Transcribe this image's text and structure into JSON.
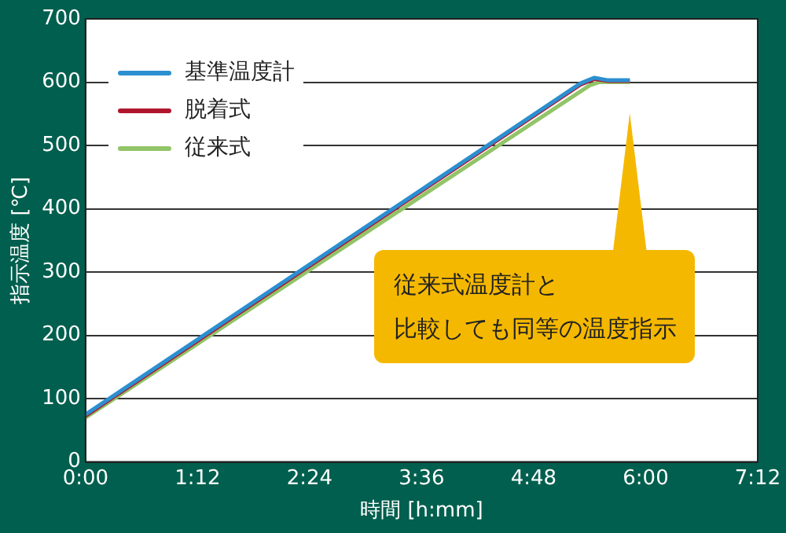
{
  "chart_data": {
    "type": "line",
    "xlabel": "時間 [h:mm]",
    "ylabel": "指示温度 [℃]",
    "series": [
      {
        "name": "基準温度計",
        "color": "#2b8fd0",
        "x": [
          0,
          5.3,
          5.45,
          5.6,
          5.83
        ],
        "values": [
          75,
          598,
          607,
          603,
          603
        ]
      },
      {
        "name": "脱着式",
        "color": "#b0172e",
        "x": [
          0,
          5.3,
          5.45,
          5.6,
          5.83
        ],
        "values": [
          73,
          596,
          605,
          602,
          602
        ]
      },
      {
        "name": "従来式",
        "color": "#92c468",
        "x": [
          0,
          5.4,
          5.5,
          5.83
        ],
        "values": [
          70,
          595,
          600,
          600
        ]
      }
    ],
    "xlim": [
      0,
      7.2
    ],
    "xticks": [
      {
        "value": 0,
        "label": "0:00"
      },
      {
        "value": 1.2,
        "label": "1:12"
      },
      {
        "value": 2.4,
        "label": "2:24"
      },
      {
        "value": 3.6,
        "label": "3:36"
      },
      {
        "value": 4.8,
        "label": "4:48"
      },
      {
        "value": 6,
        "label": "6:00"
      },
      {
        "value": 7.2,
        "label": "7:12"
      }
    ],
    "ylim": [
      0,
      700
    ],
    "yticks": [
      0,
      100,
      200,
      300,
      400,
      500,
      600,
      700
    ],
    "grid": "y",
    "legend": "top left",
    "marker": "none",
    "line_style": "solid",
    "annotations": [
      "従来式温度計と",
      "比較しても同等の温度指示"
    ]
  }
}
